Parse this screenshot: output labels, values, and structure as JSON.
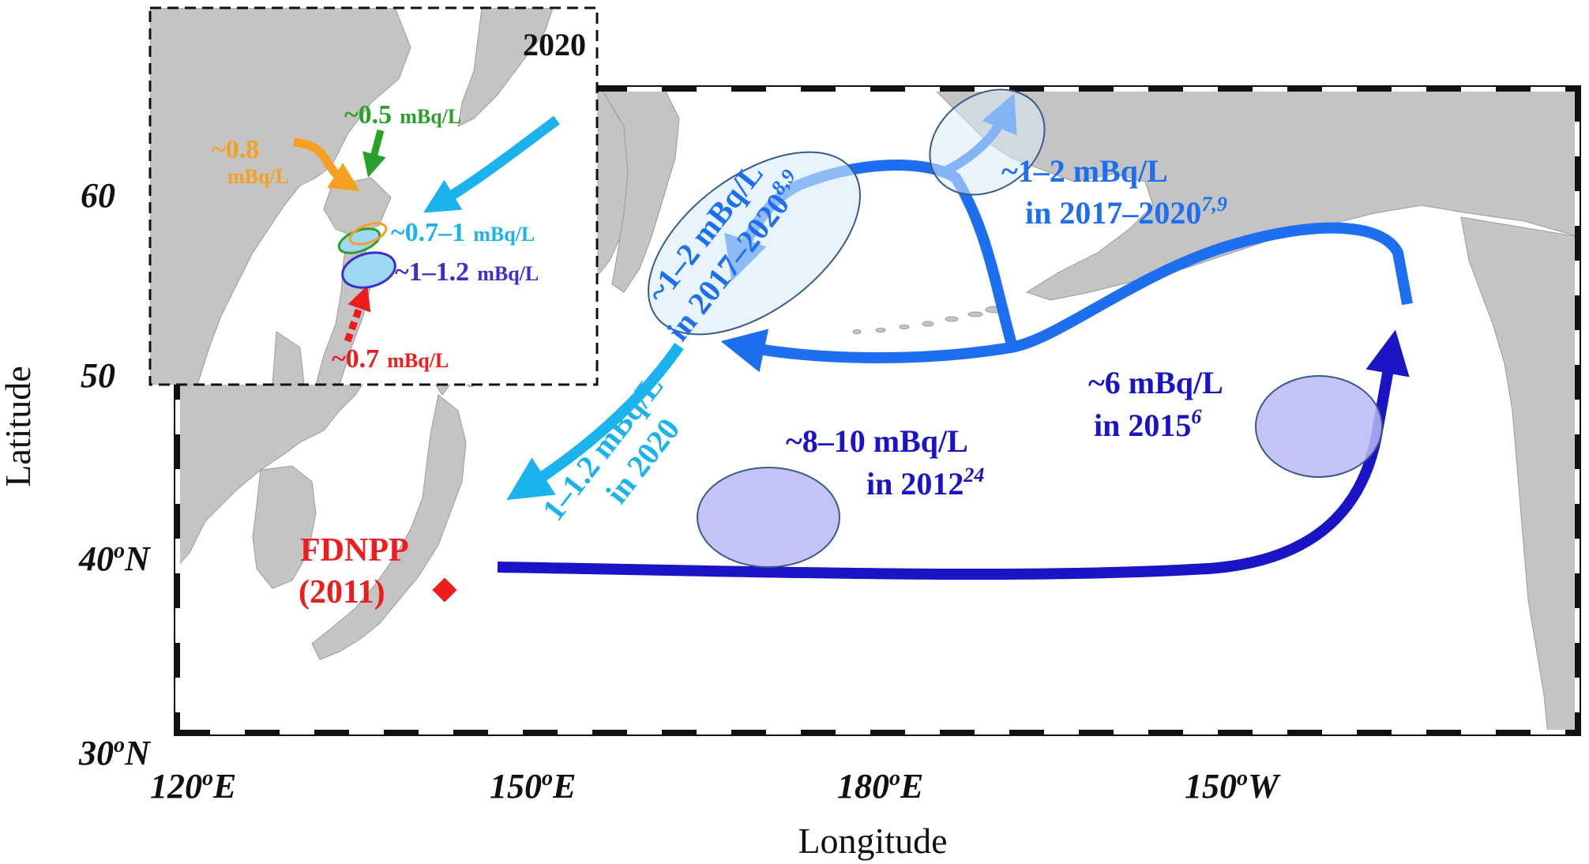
{
  "axes": {
    "x_title": "Longitude",
    "y_title": "Latitude",
    "x_ticks": [
      {
        "main": "120",
        "deg": "o",
        "hem": "E"
      },
      {
        "main": "150",
        "deg": "o",
        "hem": "E"
      },
      {
        "main": "180",
        "deg": "o",
        "hem": "E"
      },
      {
        "main": "150",
        "deg": "o",
        "hem": "W"
      }
    ],
    "y_ticks": [
      {
        "main": "30",
        "deg": "o",
        "hem": "N"
      },
      {
        "main": "40",
        "deg": "o",
        "hem": "N"
      }
    ]
  },
  "inset": {
    "year": "2020",
    "y_ticks": [
      "60",
      "50"
    ],
    "labels": {
      "orange_value": "~0.8",
      "orange_unit": "mBq/L",
      "green_value": "~0.5",
      "green_unit": "mBq/L",
      "cyan_value": "~0.7–1",
      "cyan_unit": "mBq/L",
      "blue_value": "~1–1.2",
      "blue_unit": "mBq/L",
      "red_value": "~0.7",
      "red_unit": "mBq/L"
    }
  },
  "site": {
    "name": "FDNPP",
    "year": "(2011)"
  },
  "annotations": {
    "okhotsk_value": "~1–2 mBq/L",
    "okhotsk_period": "in 2017–2020",
    "okhotsk_refs": "8,9",
    "bering_value": "~1–2 mBq/L",
    "bering_period": "in 2017–2020",
    "bering_refs": "7,9",
    "west_value": "1–1.2 mBq/L",
    "west_period": "in 2020",
    "central_value": "~8–10 mBq/L",
    "central_period": "in 2012",
    "central_refs": "24",
    "east_value": "~6 mBq/L",
    "east_period": "in 2015",
    "east_refs": "6"
  },
  "colors": {
    "land": "#c4c4c4",
    "ocean": "#ffffff",
    "frame": "#111111",
    "dark_blue": "#1a14c6",
    "mid_blue": "#1e6ff0",
    "light_blue": "#1ab3ee",
    "label_blue": "#1e6ff0",
    "lilac": "#b8b8f5",
    "ellipse_fill": "#d9ecf8",
    "site_red": "#ee1c1c",
    "orange": "#f5a020",
    "green": "#2aa02a",
    "inset_blue": "#3a2ed0"
  }
}
